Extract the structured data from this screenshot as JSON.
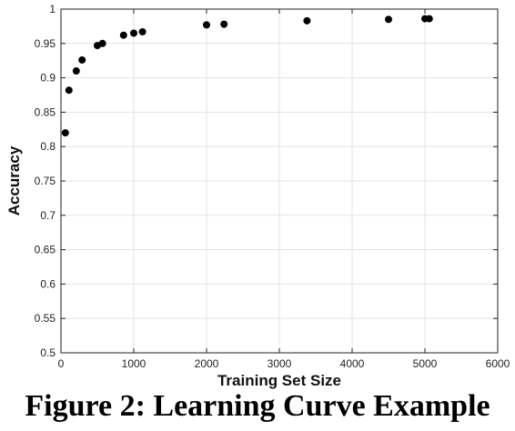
{
  "caption": "Figure 2: Learning Curve Example",
  "colors": {
    "marker": "#000000",
    "grid": "#e3e3e3",
    "axis": "#222222"
  },
  "chart_data": {
    "type": "scatter",
    "xlabel": "Training Set Size",
    "ylabel": "Accuracy",
    "xlim": [
      0,
      6000
    ],
    "ylim": [
      0.5,
      1
    ],
    "xticks": [
      0,
      1000,
      2000,
      3000,
      4000,
      5000,
      6000
    ],
    "yticks": [
      0.5,
      0.55,
      0.6,
      0.65,
      0.7,
      0.75,
      0.8,
      0.85,
      0.9,
      0.95,
      1
    ],
    "ytick_labels": [
      "0.5",
      "0.55",
      "0.6",
      "0.65",
      "0.7",
      "0.75",
      "0.8",
      "0.85",
      "0.9",
      "0.95",
      "1"
    ],
    "grid": true,
    "series": [
      {
        "x": [
          60,
          110,
          210,
          290,
          500,
          570,
          860,
          1000,
          1120,
          2000,
          2240,
          3380,
          4500,
          5000,
          5060
        ],
        "y": [
          0.82,
          0.882,
          0.91,
          0.926,
          0.947,
          0.95,
          0.962,
          0.965,
          0.967,
          0.977,
          0.978,
          0.983,
          0.985,
          0.986,
          0.986
        ]
      }
    ]
  }
}
